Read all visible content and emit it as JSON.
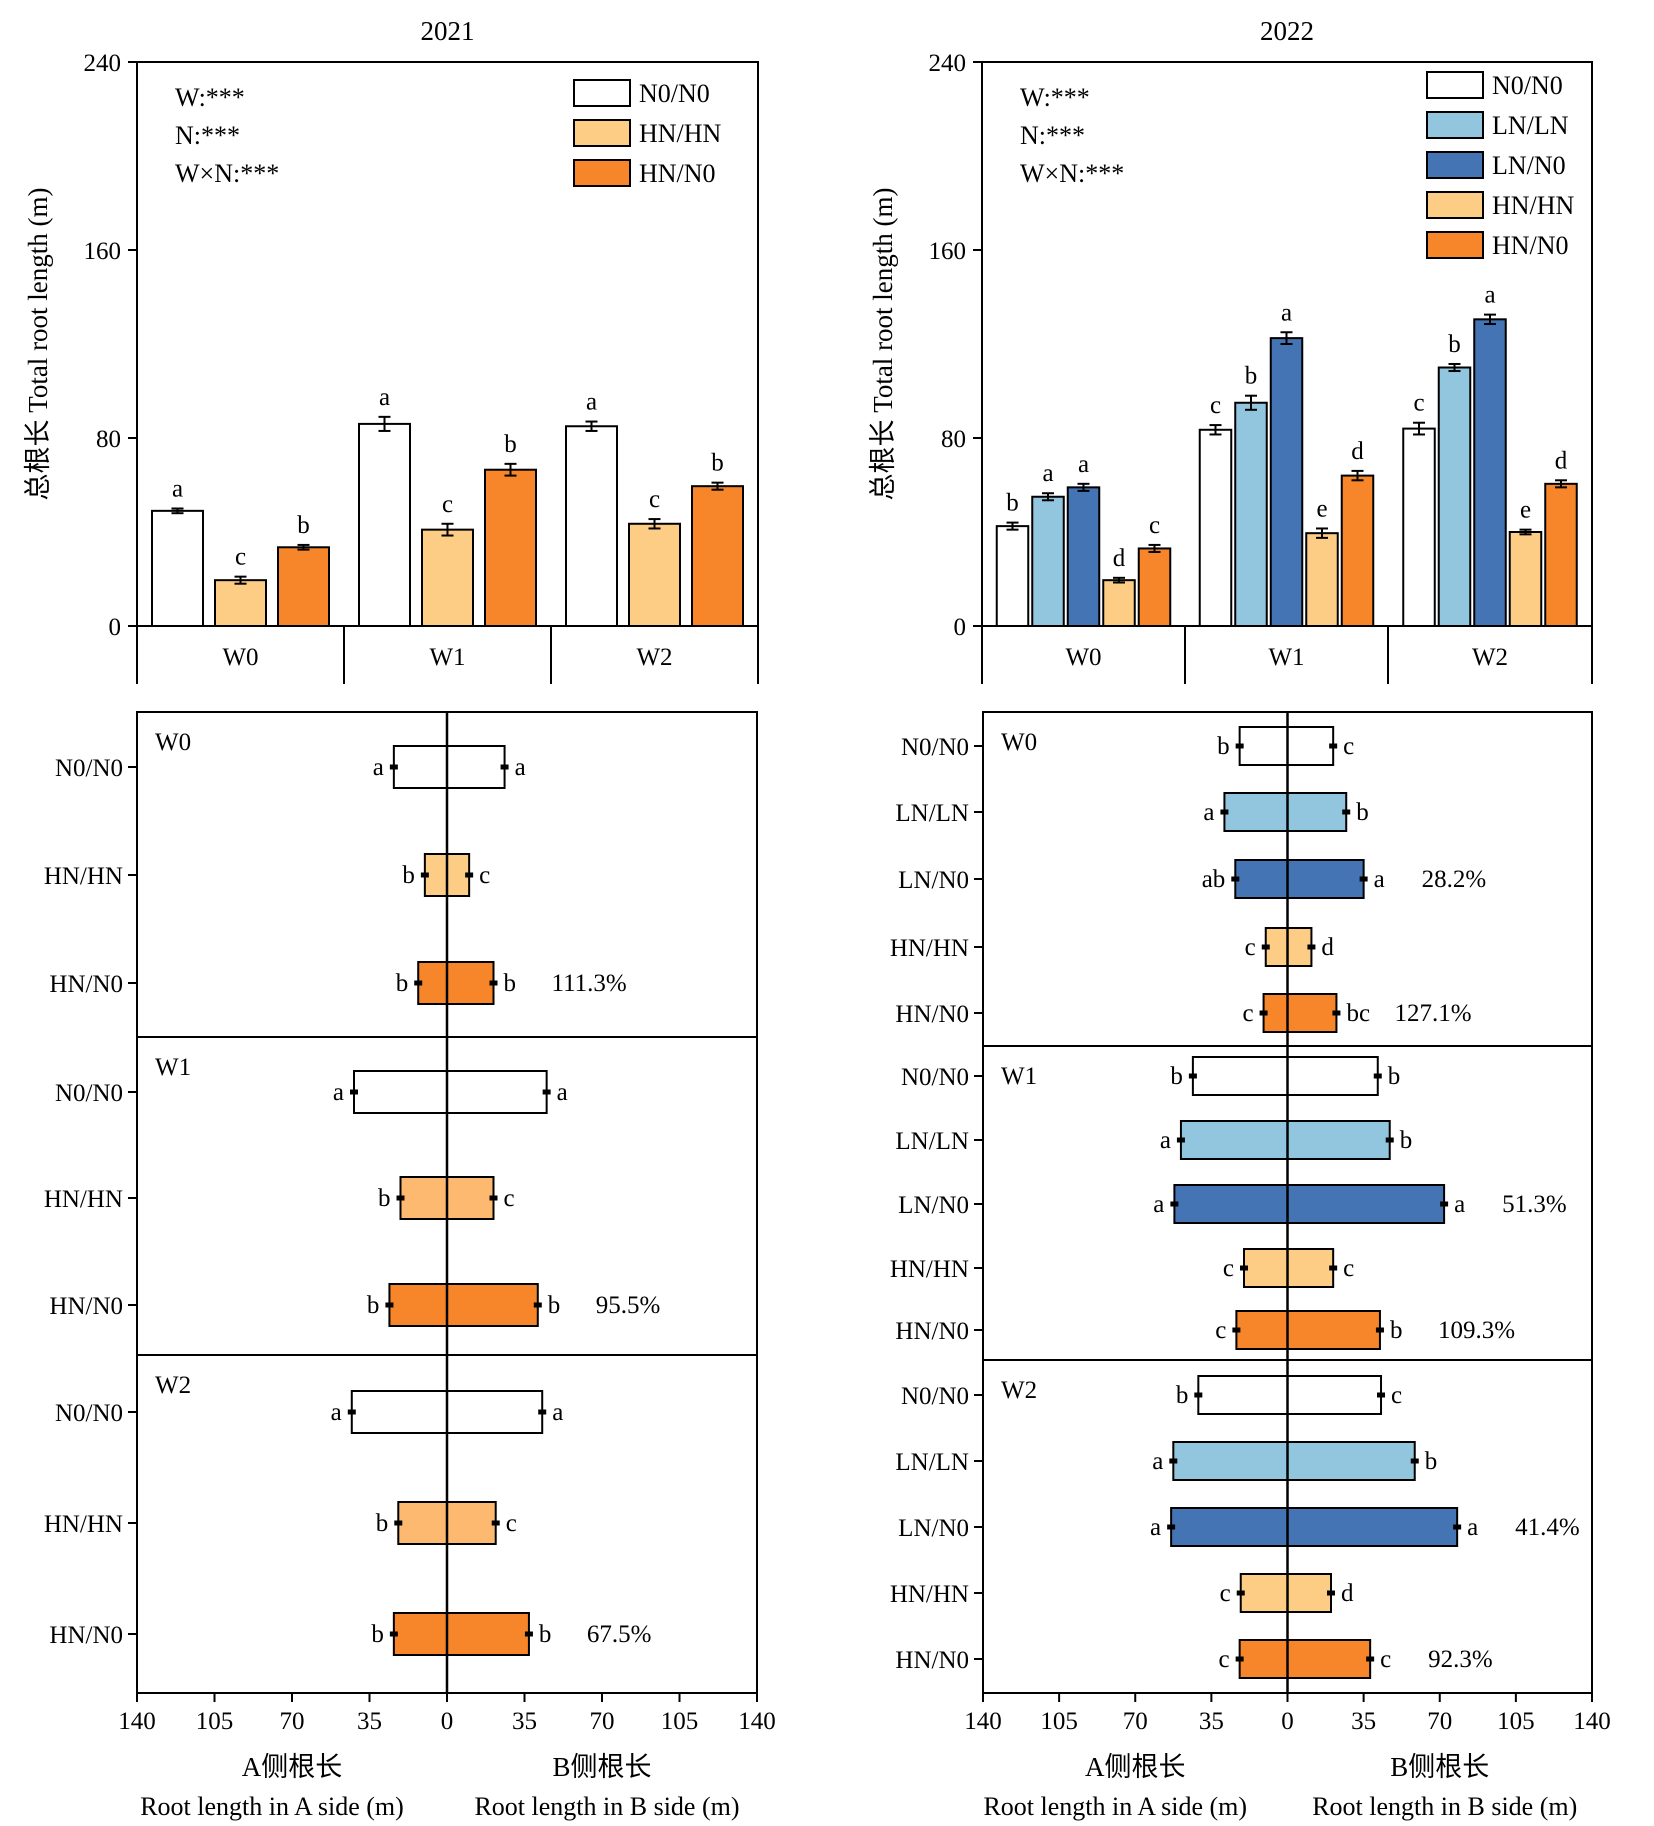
{
  "colors": {
    "N0/N0": "#ffffff",
    "LN/LN": "#92c5de",
    "LN/N0": "#4574b4",
    "HN/HN": "#fdcd85",
    "HN/N0": "#f68629",
    "HN/HN_butterfly_2021": "#fdb970"
  },
  "chart_data": [
    {
      "id": "2021-total",
      "type": "bar",
      "title": "2021",
      "ylabel": "总根长 Total root length (m)",
      "ylim": [
        0,
        240
      ],
      "yticks": [
        "0",
        "80",
        "160",
        "240"
      ],
      "categories": [
        "W0",
        "W1",
        "W2"
      ],
      "stats": [
        "W:***",
        "N:***",
        "W×N:***"
      ],
      "legend_position": "top-right",
      "series": [
        {
          "name": "N0/N0",
          "values": [
            49,
            86,
            85
          ],
          "errors": [
            1,
            3,
            2
          ],
          "letters": [
            "a",
            "a",
            "a"
          ]
        },
        {
          "name": "HN/HN",
          "values": [
            19.5,
            41,
            43.5
          ],
          "errors": [
            1.5,
            2.5,
            2
          ],
          "letters": [
            "c",
            "c",
            "c"
          ]
        },
        {
          "name": "HN/N0",
          "values": [
            33.5,
            66.5,
            59.5
          ],
          "errors": [
            1,
            2.5,
            1.5
          ],
          "letters": [
            "b",
            "b",
            "b"
          ]
        }
      ]
    },
    {
      "id": "2022-total",
      "type": "bar",
      "title": "2022",
      "ylabel": "总根长 Total root length (m)",
      "ylim": [
        0,
        240
      ],
      "yticks": [
        "0",
        "80",
        "160",
        "240"
      ],
      "categories": [
        "W0",
        "W1",
        "W2"
      ],
      "stats": [
        "W:***",
        "N:***",
        "W×N:***"
      ],
      "legend_position": "top-right",
      "series": [
        {
          "name": "N0/N0",
          "values": [
            42.5,
            83.5,
            84
          ],
          "errors": [
            1.5,
            2,
            2.5
          ],
          "letters": [
            "b",
            "c",
            "c"
          ]
        },
        {
          "name": "LN/LN",
          "values": [
            55,
            95,
            110
          ],
          "errors": [
            1.5,
            3,
            1.5
          ],
          "letters": [
            "a",
            "b",
            "b"
          ]
        },
        {
          "name": "LN/N0",
          "values": [
            59,
            122.5,
            130.5
          ],
          "errors": [
            1.5,
            2.5,
            2
          ],
          "letters": [
            "a",
            "a",
            "a"
          ]
        },
        {
          "name": "HN/HN",
          "values": [
            19.5,
            39.5,
            40
          ],
          "errors": [
            1,
            2,
            1
          ],
          "letters": [
            "d",
            "e",
            "e"
          ]
        },
        {
          "name": "HN/N0",
          "values": [
            33,
            64,
            60.5
          ],
          "errors": [
            1.5,
            2,
            1.5
          ],
          "letters": [
            "c",
            "d",
            "d"
          ]
        }
      ]
    },
    {
      "id": "2021-sides",
      "type": "bar",
      "orientation": "horizontal-diverging",
      "xlabel_left": "A侧根长",
      "xlabel_left_en": "Root length in A side (m)",
      "xlabel_right": "B侧根长",
      "xlabel_right_en": "Root length in B side  (m)",
      "xlim": [
        -140,
        140
      ],
      "xticks": [
        "140",
        "105",
        "70",
        "35",
        "0",
        "35",
        "70",
        "105",
        "140"
      ],
      "groups": [
        {
          "name": "W0",
          "rows": [
            {
              "category": "N0/N0",
              "a": 24,
              "b": 26,
              "la": "a",
              "lb": "a",
              "pct": ""
            },
            {
              "category": "HN/HN",
              "a": 10,
              "b": 10,
              "la": "b",
              "lb": "c",
              "pct": ""
            },
            {
              "category": "HN/N0",
              "a": 13,
              "b": 21,
              "la": "b",
              "lb": "b",
              "pct": "111.3%"
            }
          ]
        },
        {
          "name": "W1",
          "rows": [
            {
              "category": "N0/N0",
              "a": 42,
              "b": 45,
              "la": "a",
              "lb": "a",
              "pct": ""
            },
            {
              "category": "HN/HN",
              "a": 21,
              "b": 21,
              "la": "b",
              "lb": "c",
              "pct": ""
            },
            {
              "category": "HN/N0",
              "a": 26,
              "b": 41,
              "la": "b",
              "lb": "b",
              "pct": "95.5%"
            }
          ]
        },
        {
          "name": "W2",
          "rows": [
            {
              "category": "N0/N0",
              "a": 43,
              "b": 43,
              "la": "a",
              "lb": "a",
              "pct": ""
            },
            {
              "category": "HN/HN",
              "a": 22,
              "b": 22,
              "la": "b",
              "lb": "c",
              "pct": ""
            },
            {
              "category": "HN/N0",
              "a": 24,
              "b": 37,
              "la": "b",
              "lb": "b",
              "pct": "67.5%"
            }
          ]
        }
      ]
    },
    {
      "id": "2022-sides",
      "type": "bar",
      "orientation": "horizontal-diverging",
      "xlabel_left": "A侧根长",
      "xlabel_left_en": "Root length in A side (m)",
      "xlabel_right": "B侧根长",
      "xlabel_right_en": "Root length in B side  (m)",
      "xlim": [
        -140,
        140
      ],
      "xticks": [
        "140",
        "105",
        "70",
        "35",
        "0",
        "35",
        "70",
        "105",
        "140"
      ],
      "groups": [
        {
          "name": "W0",
          "rows": [
            {
              "category": "N0/N0",
              "a": 22,
              "b": 21,
              "la": "b",
              "lb": "c",
              "pct": ""
            },
            {
              "category": "LN/LN",
              "a": 29,
              "b": 27,
              "la": "a",
              "lb": "b",
              "pct": ""
            },
            {
              "category": "LN/N0",
              "a": 24,
              "b": 35,
              "la": "ab",
              "lb": "a",
              "pct": "28.2%"
            },
            {
              "category": "HN/HN",
              "a": 10,
              "b": 11,
              "la": "c",
              "lb": "d",
              "pct": ""
            },
            {
              "category": "HN/N0",
              "a": 11,
              "b": 22.5,
              "la": "c",
              "lb": "bc",
              "pct": "127.1%"
            }
          ]
        },
        {
          "name": "W1",
          "rows": [
            {
              "category": "N0/N0",
              "a": 43.5,
              "b": 41.5,
              "la": "b",
              "lb": "b",
              "pct": ""
            },
            {
              "category": "LN/LN",
              "a": 49,
              "b": 47,
              "la": "a",
              "lb": "b",
              "pct": ""
            },
            {
              "category": "LN/N0",
              "a": 52,
              "b": 72,
              "la": "a",
              "lb": "a",
              "pct": "51.3%"
            },
            {
              "category": "HN/HN",
              "a": 20,
              "b": 21,
              "la": "c",
              "lb": "c",
              "pct": ""
            },
            {
              "category": "HN/N0",
              "a": 23.5,
              "b": 42.5,
              "la": "c",
              "lb": "b",
              "pct": "109.3%"
            }
          ]
        },
        {
          "name": "W2",
          "rows": [
            {
              "category": "N0/N0",
              "a": 41,
              "b": 43,
              "la": "b",
              "lb": "c",
              "pct": ""
            },
            {
              "category": "LN/LN",
              "a": 52.5,
              "b": 58.5,
              "la": "a",
              "lb": "b",
              "pct": ""
            },
            {
              "category": "LN/N0",
              "a": 53.5,
              "b": 78,
              "la": "a",
              "lb": "a",
              "pct": "41.4%"
            },
            {
              "category": "HN/HN",
              "a": 21.5,
              "b": 20,
              "la": "c",
              "lb": "d",
              "pct": ""
            },
            {
              "category": "HN/N0",
              "a": 22,
              "b": 38,
              "la": "c",
              "lb": "c",
              "pct": "92.3%"
            }
          ]
        }
      ]
    }
  ]
}
